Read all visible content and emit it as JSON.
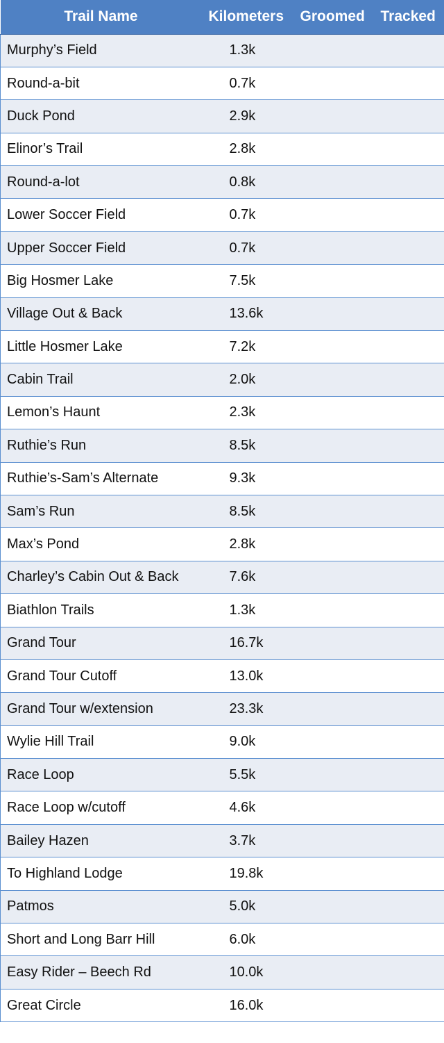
{
  "table": {
    "headers": {
      "name": "Trail Name",
      "km": "Kilometers",
      "groomed": "Groomed",
      "tracked": "Tracked"
    },
    "rows": [
      {
        "name": "Murphy’s Field",
        "km": "1.3k",
        "groomed": "",
        "tracked": ""
      },
      {
        "name": "Round-a-bit",
        "km": "0.7k",
        "groomed": "",
        "tracked": ""
      },
      {
        "name": "Duck Pond",
        "km": "2.9k",
        "groomed": "",
        "tracked": ""
      },
      {
        "name": "Elinor’s Trail",
        "km": "2.8k",
        "groomed": "",
        "tracked": ""
      },
      {
        "name": "Round-a-lot",
        "km": "0.8k",
        "groomed": "",
        "tracked": ""
      },
      {
        "name": "Lower Soccer Field",
        "km": "0.7k",
        "groomed": "",
        "tracked": ""
      },
      {
        "name": "Upper Soccer Field",
        "km": "0.7k",
        "groomed": "",
        "tracked": ""
      },
      {
        "name": "Big Hosmer Lake",
        "km": "7.5k",
        "groomed": "",
        "tracked": ""
      },
      {
        "name": "Village Out & Back",
        "km": "13.6k",
        "groomed": "",
        "tracked": ""
      },
      {
        "name": "Little Hosmer Lake",
        "km": "7.2k",
        "groomed": "",
        "tracked": ""
      },
      {
        "name": "Cabin Trail",
        "km": "2.0k",
        "groomed": "",
        "tracked": ""
      },
      {
        "name": "Lemon’s Haunt",
        "km": "2.3k",
        "groomed": "",
        "tracked": ""
      },
      {
        "name": "Ruthie’s Run",
        "km": "8.5k",
        "groomed": "",
        "tracked": ""
      },
      {
        "name": "Ruthie’s-Sam’s Alternate",
        "km": "9.3k",
        "groomed": "",
        "tracked": ""
      },
      {
        "name": "Sam’s Run",
        "km": "8.5k",
        "groomed": "",
        "tracked": ""
      },
      {
        "name": "Max’s Pond",
        "km": "2.8k",
        "groomed": "",
        "tracked": ""
      },
      {
        "name": "Charley’s Cabin Out & Back",
        "km": "7.6k",
        "groomed": "",
        "tracked": ""
      },
      {
        "name": "Biathlon Trails",
        "km": "1.3k",
        "groomed": "",
        "tracked": ""
      },
      {
        "name": "Grand Tour",
        "km": "16.7k",
        "groomed": "",
        "tracked": ""
      },
      {
        "name": "Grand Tour Cutoff",
        "km": "13.0k",
        "groomed": "",
        "tracked": ""
      },
      {
        "name": "Grand Tour w/extension",
        "km": "23.3k",
        "groomed": "",
        "tracked": ""
      },
      {
        "name": "Wylie Hill Trail",
        "km": "9.0k",
        "groomed": "",
        "tracked": ""
      },
      {
        "name": "Race Loop",
        "km": "5.5k",
        "groomed": "",
        "tracked": ""
      },
      {
        "name": "Race Loop w/cutoff",
        "km": "4.6k",
        "groomed": "",
        "tracked": ""
      },
      {
        "name": "Bailey Hazen",
        "km": "3.7k",
        "groomed": "",
        "tracked": ""
      },
      {
        "name": "To Highland Lodge",
        "km": "19.8k",
        "groomed": "",
        "tracked": ""
      },
      {
        "name": "Patmos",
        "km": "5.0k",
        "groomed": "",
        "tracked": ""
      },
      {
        "name": "Short and Long Barr Hill",
        "km": "6.0k",
        "groomed": "",
        "tracked": ""
      },
      {
        "name": "Easy Rider – Beech Rd",
        "km": "10.0k",
        "groomed": "",
        "tracked": ""
      },
      {
        "name": "Great Circle",
        "km": "16.0k",
        "groomed": "",
        "tracked": ""
      }
    ]
  },
  "colors": {
    "header_background": "#4f81c4",
    "header_text": "#ffffff",
    "row_alt_background": "#e9edf4",
    "row_background": "#ffffff",
    "border": "#5b8fd0"
  }
}
